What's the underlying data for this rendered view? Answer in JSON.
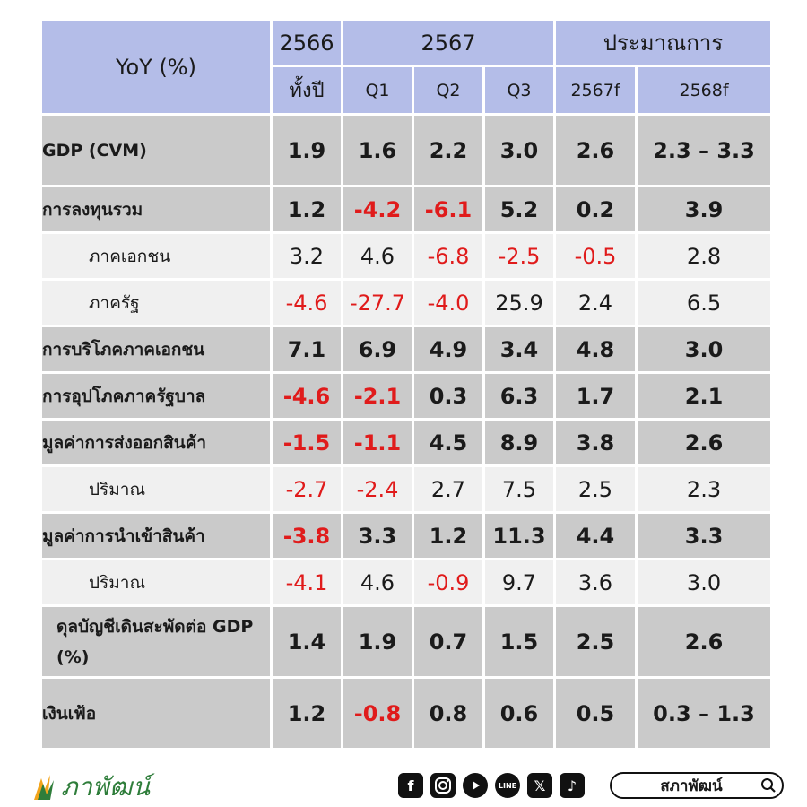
{
  "table": {
    "corner_label": "YoY (%)",
    "year_2566": "2566",
    "year_2567": "2567",
    "forecast_label": "ประมาณการ",
    "sub_headers": [
      "ทั้งปี",
      "Q1",
      "Q2",
      "Q3",
      "2567f",
      "2568f"
    ],
    "rows": [
      {
        "label": "GDP (CVM)",
        "type": "main",
        "values": [
          "1.9",
          "1.6",
          "2.2",
          "3.0",
          "2.6",
          "2.3 – 3.3"
        ]
      },
      {
        "label": "การลงทุนรวม",
        "type": "main",
        "values": [
          "1.2",
          "-4.2",
          "-6.1",
          "5.2",
          "0.2",
          "3.9"
        ]
      },
      {
        "label": "ภาคเอกชน",
        "type": "sub",
        "values": [
          "3.2",
          "4.6",
          "-6.8",
          "-2.5",
          "-0.5",
          "2.8"
        ]
      },
      {
        "label": "ภาครัฐ",
        "type": "sub",
        "values": [
          "-4.6",
          "-27.7",
          "-4.0",
          "25.9",
          "2.4",
          "6.5"
        ]
      },
      {
        "label": "การบริโภคภาคเอกชน",
        "type": "main",
        "values": [
          "7.1",
          "6.9",
          "4.9",
          "3.4",
          "4.8",
          "3.0"
        ]
      },
      {
        "label": "การอุปโภคภาครัฐบาล",
        "type": "main",
        "values": [
          "-4.6",
          "-2.1",
          "0.3",
          "6.3",
          "1.7",
          "2.1"
        ]
      },
      {
        "label": "มูลค่าการส่งออกสินค้า",
        "type": "main",
        "values": [
          "-1.5",
          "-1.1",
          "4.5",
          "8.9",
          "3.8",
          "2.6"
        ]
      },
      {
        "label": "ปริมาณ",
        "type": "sub",
        "values": [
          "-2.7",
          "-2.4",
          "2.7",
          "7.5",
          "2.5",
          "2.3"
        ]
      },
      {
        "label": "มูลค่าการนำเข้าสินค้า",
        "type": "main",
        "values": [
          "-3.8",
          "3.3",
          "1.2",
          "11.3",
          "4.4",
          "3.3"
        ]
      },
      {
        "label": "ปริมาณ",
        "type": "sub",
        "values": [
          "-4.1",
          "4.6",
          "-0.9",
          "9.7",
          "3.6",
          "3.0"
        ]
      },
      {
        "label": "ดุลบัญชีเดินสะพัดต่อ GDP (%)",
        "type": "main",
        "values": [
          "1.4",
          "1.9",
          "0.7",
          "1.5",
          "2.5",
          "2.6"
        ]
      },
      {
        "label": "เงินเฟ้อ",
        "type": "main",
        "values": [
          "1.2",
          "-0.8",
          "0.8",
          "0.6",
          "0.5",
          "0.3 – 1.3"
        ]
      }
    ],
    "negative_color": "#e01b1b",
    "header_color": "#b4bde8",
    "main_row_color": "#cacaca",
    "sub_row_color": "#f0f0f0"
  },
  "footer": {
    "logo_text": "ภาพัฒน์",
    "logo_color": "#2e7d3a",
    "social_icons": [
      "facebook-icon",
      "instagram-icon",
      "youtube-icon",
      "line-icon",
      "x-icon",
      "tiktok-icon"
    ],
    "search_text": "สภาพัฒน์",
    "search_icon": "magnifier-icon"
  }
}
